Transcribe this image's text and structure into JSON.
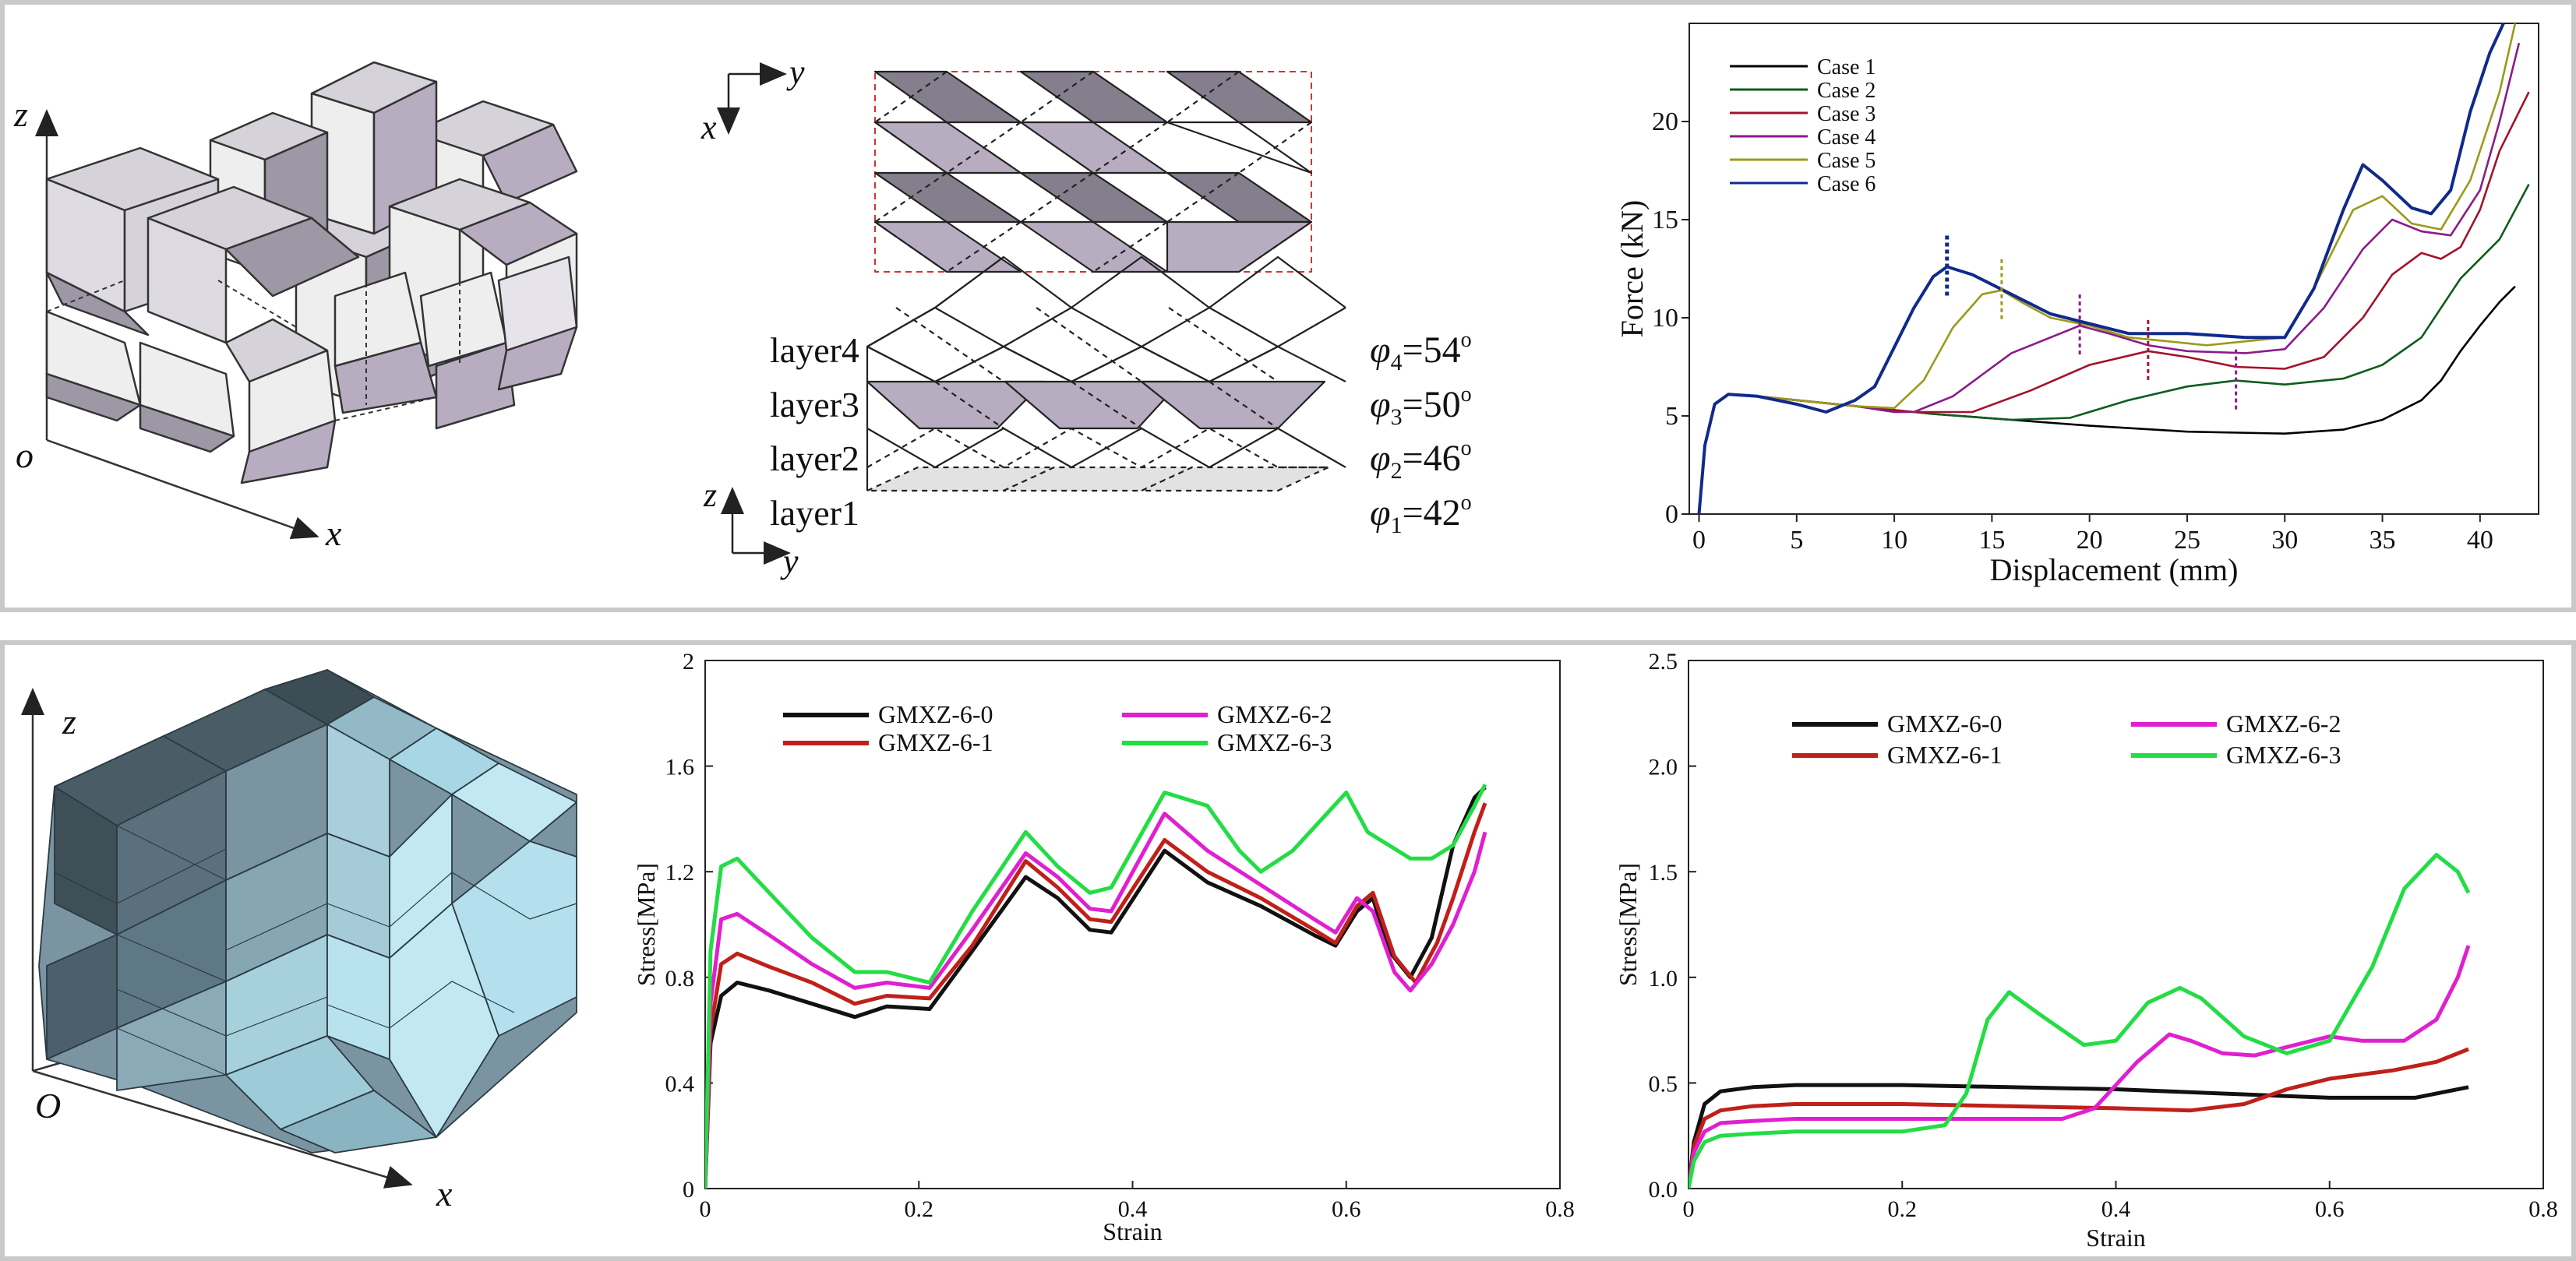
{
  "colors": {
    "panel_border": "#c9c9c9",
    "cell_top": "#d5d2da",
    "cell_dark": "#9d97a6",
    "cell_light": "#eeeeef",
    "cell_purple": "#b8adc0",
    "blue_top": "#4a5c66",
    "blue_mid": "#7a94a2",
    "blue_light": "#c2e8f4"
  },
  "top": {
    "iso": {
      "z_label": "z",
      "x_label": "x",
      "origin_label": "o"
    },
    "layers": {
      "x_label": "x",
      "y_label": "y",
      "z_label": "z",
      "y2_label": "y",
      "rows": [
        {
          "layer": "layer4",
          "phi": "φ",
          "sub": "4",
          "angle": "=54",
          "deg": "o"
        },
        {
          "layer": "layer3",
          "phi": "φ",
          "sub": "3",
          "angle": "=50",
          "deg": "o"
        },
        {
          "layer": "layer2",
          "phi": "φ",
          "sub": "2",
          "angle": "=46",
          "deg": "o"
        },
        {
          "layer": "layer1",
          "phi": "φ",
          "sub": "1",
          "angle": "=42",
          "deg": "o"
        }
      ]
    }
  },
  "bottom": {
    "iso": {
      "z_label": "z",
      "x_label": "x",
      "origin_label": "O"
    }
  },
  "chart_data": [
    {
      "type": "line",
      "xlabel": "Displacement (mm)",
      "ylabel": "Force (kN)",
      "xlim": [
        -0.5,
        43
      ],
      "ylim": [
        0,
        25
      ],
      "xticks": [
        0,
        5,
        10,
        15,
        20,
        25,
        30,
        35,
        40
      ],
      "yticks": [
        0,
        5,
        10,
        15,
        20
      ],
      "grid": false,
      "legend": "top-left",
      "series": [
        {
          "name": "Case 1",
          "color": "#000000",
          "x": [
            0,
            0.3,
            0.8,
            1.5,
            3,
            5,
            8,
            12,
            16,
            20,
            25,
            30,
            33,
            35,
            37,
            38,
            39,
            40,
            41,
            41.8
          ],
          "y": [
            0,
            3.5,
            5.6,
            6.1,
            6.0,
            5.8,
            5.5,
            5.1,
            4.8,
            4.5,
            4.2,
            4.1,
            4.3,
            4.8,
            5.8,
            6.8,
            8.3,
            9.6,
            10.8,
            11.6
          ]
        },
        {
          "name": "Case 2",
          "color": "#0f5c1f",
          "x": [
            0,
            0.3,
            0.8,
            1.5,
            3,
            5,
            8,
            12,
            16,
            19,
            22,
            25,
            27.5,
            30,
            33,
            35,
            37,
            38,
            39,
            40,
            41,
            42.5
          ],
          "y": [
            0,
            3.5,
            5.6,
            6.1,
            6.0,
            5.8,
            5.5,
            5.1,
            4.8,
            4.9,
            5.8,
            6.5,
            6.8,
            6.6,
            6.9,
            7.6,
            9.0,
            10.5,
            12.0,
            13.0,
            14.0,
            16.8
          ]
        },
        {
          "name": "Case 3",
          "color": "#a3122a",
          "x": [
            0,
            0.3,
            0.8,
            1.5,
            3,
            5,
            8,
            11,
            14,
            17,
            20,
            23,
            25,
            27.5,
            30,
            32,
            34,
            35.5,
            37,
            38,
            39,
            40,
            41,
            42.5
          ],
          "y": [
            0,
            3.5,
            5.6,
            6.1,
            6.0,
            5.8,
            5.5,
            5.2,
            5.2,
            6.3,
            7.6,
            8.3,
            8.0,
            7.5,
            7.4,
            8.0,
            10.0,
            12.2,
            13.3,
            13.0,
            13.6,
            15.5,
            18.5,
            21.5
          ]
        },
        {
          "name": "Case 4",
          "color": "#8b1a8b",
          "x": [
            0,
            0.3,
            0.8,
            1.5,
            3,
            5,
            8,
            10,
            11,
            13,
            16,
            19.5,
            21,
            23,
            25,
            28,
            30,
            32,
            34,
            35.5,
            37,
            38.5,
            40,
            41,
            42
          ],
          "y": [
            0,
            3.5,
            5.6,
            6.1,
            6.0,
            5.8,
            5.5,
            5.2,
            5.2,
            6.0,
            8.2,
            9.6,
            9.2,
            8.6,
            8.3,
            8.2,
            8.4,
            10.5,
            13.5,
            15.0,
            14.4,
            14.2,
            16.5,
            20.0,
            24.0
          ]
        },
        {
          "name": "Case 5",
          "color": "#9a9a1c",
          "x": [
            0,
            0.3,
            0.8,
            1.5,
            3,
            5,
            8,
            10,
            11.5,
            13,
            14.5,
            15.5,
            16.5,
            18,
            20,
            22,
            24,
            26,
            28,
            30,
            31.5,
            33.5,
            35,
            36.5,
            38,
            39.5,
            41,
            41.8
          ],
          "y": [
            0,
            3.5,
            5.6,
            6.1,
            6.0,
            5.8,
            5.5,
            5.4,
            6.8,
            9.5,
            11.2,
            11.4,
            10.8,
            10.0,
            9.6,
            9.0,
            8.8,
            8.6,
            8.8,
            9.0,
            11.5,
            15.5,
            16.2,
            14.8,
            14.5,
            17.0,
            21.5,
            25.0
          ]
        },
        {
          "name": "Case 6",
          "color": "#102a8c",
          "x": [
            0,
            0.3,
            0.8,
            1.5,
            3,
            5,
            6.5,
            8,
            9,
            10,
            11,
            12,
            12.7,
            14,
            16,
            18,
            20,
            22,
            25,
            28,
            30,
            31.5,
            33,
            34,
            35,
            36.5,
            37.5,
            38.5,
            39.5,
            40.5,
            41.2
          ],
          "y": [
            0,
            3.5,
            5.6,
            6.1,
            6.0,
            5.6,
            5.2,
            5.8,
            6.5,
            8.5,
            10.5,
            12.1,
            12.6,
            12.2,
            11.2,
            10.2,
            9.7,
            9.2,
            9.2,
            9.0,
            9.0,
            11.5,
            15.5,
            17.8,
            17.0,
            15.6,
            15.3,
            16.5,
            20.5,
            23.5,
            25.0
          ]
        }
      ]
    },
    {
      "type": "line",
      "xlabel": "Strain",
      "ylabel": "Stress[MPa]",
      "xlim": [
        0,
        0.8
      ],
      "ylim": [
        0,
        2
      ],
      "xticks": [
        0,
        0.2,
        0.4,
        0.6,
        0.8
      ],
      "yticks": [
        0,
        0.4,
        0.8,
        1.2,
        1.6,
        2
      ],
      "grid": false,
      "legend": "top-left",
      "series": [
        {
          "name": "GMXZ-6-0",
          "color": "#111111",
          "x": [
            0,
            0.005,
            0.015,
            0.03,
            0.06,
            0.1,
            0.14,
            0.17,
            0.21,
            0.25,
            0.3,
            0.33,
            0.36,
            0.38,
            0.43,
            0.47,
            0.52,
            0.57,
            0.59,
            0.61,
            0.625,
            0.64,
            0.66,
            0.68,
            0.7,
            0.72,
            0.73
          ],
          "y": [
            0,
            0.55,
            0.73,
            0.78,
            0.75,
            0.7,
            0.65,
            0.69,
            0.68,
            0.9,
            1.18,
            1.1,
            0.98,
            0.97,
            1.28,
            1.16,
            1.07,
            0.96,
            0.92,
            1.05,
            1.1,
            0.9,
            0.8,
            0.95,
            1.3,
            1.48,
            1.52
          ]
        },
        {
          "name": "GMXZ-6-1",
          "color": "#c0201a",
          "x": [
            0,
            0.005,
            0.015,
            0.03,
            0.06,
            0.1,
            0.14,
            0.17,
            0.21,
            0.25,
            0.3,
            0.33,
            0.36,
            0.38,
            0.43,
            0.47,
            0.52,
            0.57,
            0.59,
            0.61,
            0.625,
            0.645,
            0.665,
            0.685,
            0.7,
            0.72,
            0.73
          ],
          "y": [
            0,
            0.6,
            0.85,
            0.89,
            0.84,
            0.78,
            0.7,
            0.73,
            0.72,
            0.92,
            1.24,
            1.14,
            1.02,
            1.01,
            1.32,
            1.2,
            1.1,
            0.98,
            0.93,
            1.07,
            1.12,
            0.88,
            0.78,
            0.93,
            1.1,
            1.35,
            1.46
          ]
        },
        {
          "name": "GMXZ-6-2",
          "color": "#e020d0",
          "x": [
            0,
            0.005,
            0.015,
            0.03,
            0.06,
            0.1,
            0.14,
            0.17,
            0.21,
            0.25,
            0.3,
            0.33,
            0.36,
            0.38,
            0.43,
            0.47,
            0.52,
            0.57,
            0.59,
            0.61,
            0.625,
            0.645,
            0.66,
            0.68,
            0.7,
            0.72,
            0.73
          ],
          "y": [
            0,
            0.7,
            1.02,
            1.04,
            0.96,
            0.85,
            0.76,
            0.78,
            0.76,
            0.98,
            1.27,
            1.18,
            1.06,
            1.05,
            1.42,
            1.28,
            1.15,
            1.02,
            0.97,
            1.1,
            1.05,
            0.82,
            0.75,
            0.85,
            1.0,
            1.2,
            1.35
          ]
        },
        {
          "name": "GMXZ-6-3",
          "color": "#22dd44",
          "x": [
            0,
            0.005,
            0.015,
            0.03,
            0.06,
            0.1,
            0.14,
            0.17,
            0.21,
            0.25,
            0.3,
            0.33,
            0.36,
            0.38,
            0.43,
            0.47,
            0.5,
            0.52,
            0.55,
            0.6,
            0.62,
            0.64,
            0.66,
            0.68,
            0.7,
            0.72,
            0.73
          ],
          "y": [
            0,
            0.9,
            1.22,
            1.25,
            1.12,
            0.95,
            0.82,
            0.82,
            0.78,
            1.05,
            1.35,
            1.22,
            1.12,
            1.14,
            1.5,
            1.45,
            1.28,
            1.2,
            1.28,
            1.5,
            1.35,
            1.3,
            1.25,
            1.25,
            1.3,
            1.45,
            1.53
          ]
        }
      ]
    },
    {
      "type": "line",
      "xlabel": "Strain",
      "ylabel": "Stress[MPa]",
      "xlim": [
        0,
        0.8
      ],
      "ylim": [
        0,
        2.5
      ],
      "xticks": [
        0,
        0.2,
        0.4,
        0.6,
        0.8
      ],
      "yticks": [
        0,
        0.5,
        1.0,
        1.5,
        2.0,
        2.5
      ],
      "grid": false,
      "legend": "top-left",
      "series": [
        {
          "name": "GMXZ-6-0",
          "color": "#111111",
          "x": [
            0,
            0.005,
            0.015,
            0.03,
            0.06,
            0.1,
            0.2,
            0.3,
            0.4,
            0.5,
            0.6,
            0.68,
            0.73
          ],
          "y": [
            0,
            0.22,
            0.4,
            0.46,
            0.48,
            0.49,
            0.49,
            0.48,
            0.47,
            0.45,
            0.43,
            0.43,
            0.48
          ]
        },
        {
          "name": "GMXZ-6-1",
          "color": "#c0201a",
          "x": [
            0,
            0.005,
            0.015,
            0.03,
            0.06,
            0.1,
            0.2,
            0.3,
            0.4,
            0.47,
            0.52,
            0.56,
            0.6,
            0.66,
            0.7,
            0.73
          ],
          "y": [
            0,
            0.2,
            0.33,
            0.37,
            0.39,
            0.4,
            0.4,
            0.39,
            0.38,
            0.37,
            0.4,
            0.47,
            0.52,
            0.56,
            0.6,
            0.66
          ]
        },
        {
          "name": "GMXZ-6-2",
          "color": "#e020d0",
          "x": [
            0,
            0.005,
            0.015,
            0.03,
            0.06,
            0.1,
            0.2,
            0.3,
            0.35,
            0.38,
            0.42,
            0.45,
            0.47,
            0.5,
            0.53,
            0.56,
            0.6,
            0.63,
            0.67,
            0.7,
            0.72,
            0.73
          ],
          "y": [
            0,
            0.17,
            0.27,
            0.31,
            0.32,
            0.33,
            0.33,
            0.33,
            0.33,
            0.38,
            0.6,
            0.73,
            0.7,
            0.64,
            0.63,
            0.67,
            0.72,
            0.7,
            0.7,
            0.8,
            1.0,
            1.15
          ]
        },
        {
          "name": "GMXZ-6-3",
          "color": "#22dd44",
          "x": [
            0,
            0.005,
            0.015,
            0.03,
            0.06,
            0.1,
            0.15,
            0.2,
            0.24,
            0.26,
            0.28,
            0.3,
            0.33,
            0.37,
            0.4,
            0.43,
            0.46,
            0.48,
            0.52,
            0.56,
            0.6,
            0.64,
            0.67,
            0.7,
            0.72,
            0.73
          ],
          "y": [
            0,
            0.13,
            0.22,
            0.25,
            0.26,
            0.27,
            0.27,
            0.27,
            0.3,
            0.45,
            0.8,
            0.93,
            0.82,
            0.68,
            0.7,
            0.88,
            0.95,
            0.9,
            0.72,
            0.64,
            0.7,
            1.05,
            1.42,
            1.58,
            1.5,
            1.4
          ]
        }
      ]
    }
  ]
}
